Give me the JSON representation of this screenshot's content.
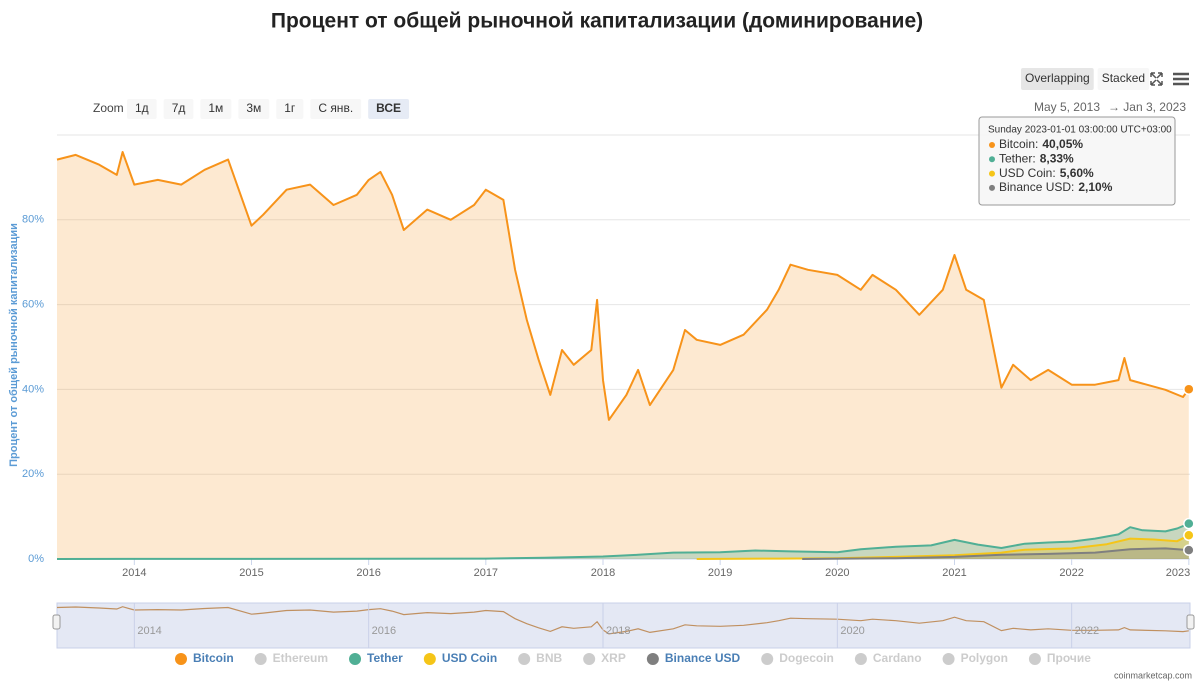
{
  "chart_data": {
    "type": "area",
    "title": "Процент от общей рыночной капитализации (доминирование)",
    "y_label": "Процент от общей рыночной капитализации",
    "xlim": [
      2013.34,
      2023.01
    ],
    "xticks": [
      2014,
      2015,
      2016,
      2017,
      2018,
      2019,
      2020,
      2021,
      2022,
      2023
    ],
    "ylim": [
      0,
      100
    ],
    "yticks": [
      {
        "value": 0,
        "label": "0%"
      },
      {
        "value": 20,
        "label": "20%"
      },
      {
        "value": 40,
        "label": "40%"
      },
      {
        "value": 60,
        "label": "60%"
      },
      {
        "value": 80,
        "label": "80%"
      }
    ],
    "grid": true,
    "series": [
      {
        "name": "Bitcoin",
        "color": "#f7931a",
        "visible": true,
        "x": [
          2013.34,
          2013.5,
          2013.7,
          2013.85,
          2013.9,
          2014.0,
          2014.2,
          2014.4,
          2014.6,
          2014.8,
          2015.0,
          2015.1,
          2015.3,
          2015.5,
          2015.7,
          2015.9,
          2016.0,
          2016.1,
          2016.2,
          2016.3,
          2016.5,
          2016.7,
          2016.9,
          2017.0,
          2017.15,
          2017.25,
          2017.35,
          2017.45,
          2017.55,
          2017.65,
          2017.75,
          2017.9,
          2017.95,
          2018.0,
          2018.05,
          2018.2,
          2018.3,
          2018.4,
          2018.6,
          2018.7,
          2018.8,
          2019.0,
          2019.2,
          2019.4,
          2019.5,
          2019.6,
          2019.75,
          2020.0,
          2020.2,
          2020.3,
          2020.5,
          2020.7,
          2020.9,
          2021.0,
          2021.1,
          2021.25,
          2021.4,
          2021.5,
          2021.65,
          2021.8,
          2022.0,
          2022.2,
          2022.4,
          2022.45,
          2022.5,
          2022.8,
          2022.95,
          2023.0
        ],
        "values": [
          94.2,
          95.3,
          93,
          90.6,
          96,
          88.3,
          89.4,
          88.3,
          91.8,
          94.2,
          78.6,
          81.2,
          87.1,
          88.3,
          83.5,
          85.9,
          89.4,
          91.3,
          85.9,
          77.6,
          82.4,
          80,
          83.5,
          87.1,
          84.7,
          68.2,
          56.4,
          47,
          38.7,
          49.3,
          45.8,
          49.3,
          61.1,
          42.2,
          32.8,
          38.7,
          44.6,
          36.3,
          44.6,
          54,
          51.7,
          50.5,
          52.9,
          58.8,
          63.5,
          69.4,
          68.2,
          67,
          63.5,
          67,
          63.5,
          57.6,
          63.5,
          71.7,
          63.5,
          61.1,
          40.4,
          45.8,
          42.2,
          44.6,
          41.1,
          41.1,
          42.2,
          47.4,
          42.2,
          39.9,
          38.2,
          40.05
        ]
      },
      {
        "name": "Ethereum",
        "color": "#cccccc",
        "visible": false
      },
      {
        "name": "Tether",
        "color": "#50af95",
        "visible": true,
        "x": [
          2013.34,
          2017.0,
          2017.5,
          2018.0,
          2018.3,
          2018.6,
          2019.0,
          2019.3,
          2019.6,
          2020.0,
          2020.2,
          2020.5,
          2020.8,
          2021.0,
          2021.2,
          2021.4,
          2021.6,
          2021.8,
          2022.0,
          2022.2,
          2022.4,
          2022.5,
          2022.6,
          2022.8,
          2022.9,
          2023.0
        ],
        "values": [
          0,
          0.1,
          0.3,
          0.6,
          1,
          1.5,
          1.6,
          2,
          1.8,
          1.6,
          2.3,
          2.9,
          3.2,
          4.5,
          3.4,
          2.6,
          3.6,
          3.9,
          4.1,
          4.8,
          5.8,
          7.5,
          6.8,
          6.5,
          7.2,
          8.33
        ]
      },
      {
        "name": "USD Coin",
        "color": "#f5c518",
        "visible": true,
        "x": [
          2018.8,
          2019.5,
          2020.0,
          2020.5,
          2021.0,
          2021.4,
          2021.6,
          2022.0,
          2022.3,
          2022.5,
          2022.7,
          2022.9,
          2023.0
        ],
        "values": [
          0,
          0.1,
          0.2,
          0.5,
          0.9,
          1.5,
          2.2,
          2.5,
          3.5,
          4.8,
          4.6,
          4.2,
          5.6
        ]
      },
      {
        "name": "BNB",
        "color": "#cccccc",
        "visible": false
      },
      {
        "name": "XRP",
        "color": "#cccccc",
        "visible": false
      },
      {
        "name": "Binance USD",
        "color": "#7f7f7f",
        "visible": true,
        "x": [
          2019.7,
          2020.5,
          2021.0,
          2021.4,
          2021.8,
          2022.2,
          2022.5,
          2022.8,
          2023.0
        ],
        "values": [
          0,
          0.2,
          0.5,
          1,
          1.2,
          1.5,
          2.3,
          2.5,
          2.1
        ]
      },
      {
        "name": "Dogecoin",
        "color": "#cccccc",
        "visible": false
      },
      {
        "name": "Cardano",
        "color": "#cccccc",
        "visible": false
      },
      {
        "name": "Polygon",
        "color": "#cccccc",
        "visible": false
      },
      {
        "name": "Прочие",
        "color": "#cccccc",
        "visible": false
      }
    ],
    "navigator_xticks": [
      2014,
      2016,
      2018,
      2020,
      2022
    ],
    "zoom": {
      "label": "Zoom",
      "buttons": [
        "1д",
        "7д",
        "1м",
        "3м",
        "1г",
        "С янв.",
        "ВСЕ"
      ],
      "selected": 6
    },
    "modes": {
      "buttons": [
        "Overlapping",
        "Stacked"
      ],
      "selected": 0
    },
    "range": {
      "from": "May 5, 2013",
      "arrow": "→",
      "to": "Jan 3, 2023"
    },
    "tooltip": {
      "header": "Sunday 2023-01-01 03:00:00 UTC+03:00",
      "rows": [
        {
          "name": "Bitcoin:",
          "value": "40,05%",
          "color": "#f7931a"
        },
        {
          "name": "Tether:",
          "value": "8,33%",
          "color": "#50af95"
        },
        {
          "name": "USD Coin:",
          "value": "5,60%",
          "color": "#f5c518"
        },
        {
          "name": "Binance USD:",
          "value": "2,10%",
          "color": "#7f7f7f"
        }
      ]
    },
    "credit": "coinmarketcap.com"
  }
}
